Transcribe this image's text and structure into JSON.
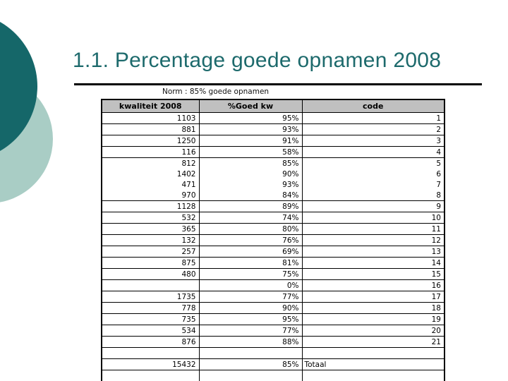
{
  "slide": {
    "title": "1.1. Percentage goede opnamen 2008",
    "subtitle": "Norm : 85% goede opnamen"
  },
  "colors": {
    "title_text": "#1d6a6c",
    "circle_dark": "#156769",
    "circle_light": "#a9cdc5",
    "header_bg": "#c0c0c0",
    "rule": "#000000",
    "table_border": "#000000"
  },
  "table": {
    "headers": [
      "kwaliteit 2008",
      "%Goed kw",
      "code"
    ],
    "rows": [
      {
        "kwaliteit": "1103",
        "pct": "95%",
        "code": "1",
        "divider_below": true
      },
      {
        "kwaliteit": "881",
        "pct": "93%",
        "code": "2",
        "divider_below": true
      },
      {
        "kwaliteit": "1250",
        "pct": "91%",
        "code": "3",
        "divider_below": true
      },
      {
        "kwaliteit": "116",
        "pct": "58%",
        "code": "4",
        "divider_below": true
      },
      {
        "kwaliteit": "812",
        "pct": "85%",
        "code": "5",
        "divider_below": false
      },
      {
        "kwaliteit": "1402",
        "pct": "90%",
        "code": "6",
        "divider_below": false
      },
      {
        "kwaliteit": "471",
        "pct": "93%",
        "code": "7",
        "divider_below": false
      },
      {
        "kwaliteit": "970",
        "pct": "84%",
        "code": "8",
        "divider_below": true
      },
      {
        "kwaliteit": "1128",
        "pct": "89%",
        "code": "9",
        "divider_below": true
      },
      {
        "kwaliteit": "532",
        "pct": "74%",
        "code": "10",
        "divider_below": true
      },
      {
        "kwaliteit": "365",
        "pct": "80%",
        "code": "11",
        "divider_below": true
      },
      {
        "kwaliteit": "132",
        "pct": "76%",
        "code": "12",
        "divider_below": true
      },
      {
        "kwaliteit": "257",
        "pct": "69%",
        "code": "13",
        "divider_below": true
      },
      {
        "kwaliteit": "875",
        "pct": "81%",
        "code": "14",
        "divider_below": true
      },
      {
        "kwaliteit": "480",
        "pct": "75%",
        "code": "15",
        "divider_below": true
      },
      {
        "kwaliteit": "",
        "pct": "0%",
        "code": "16",
        "divider_below": true
      },
      {
        "kwaliteit": "1735",
        "pct": "77%",
        "code": "17",
        "divider_below": true
      },
      {
        "kwaliteit": "778",
        "pct": "90%",
        "code": "18",
        "divider_below": true
      },
      {
        "kwaliteit": "735",
        "pct": "95%",
        "code": "19",
        "divider_below": true
      },
      {
        "kwaliteit": "534",
        "pct": "77%",
        "code": "20",
        "divider_below": true
      },
      {
        "kwaliteit": "876",
        "pct": "88%",
        "code": "21",
        "divider_below": true
      },
      {
        "kwaliteit": "",
        "pct": "",
        "code": "",
        "divider_below": true
      },
      {
        "kwaliteit": "15432",
        "pct": "85%",
        "code": "Totaal",
        "code_align": "left",
        "divider_below": true
      },
      {
        "kwaliteit": "",
        "pct": "",
        "code": "",
        "divider_below": false
      }
    ]
  }
}
